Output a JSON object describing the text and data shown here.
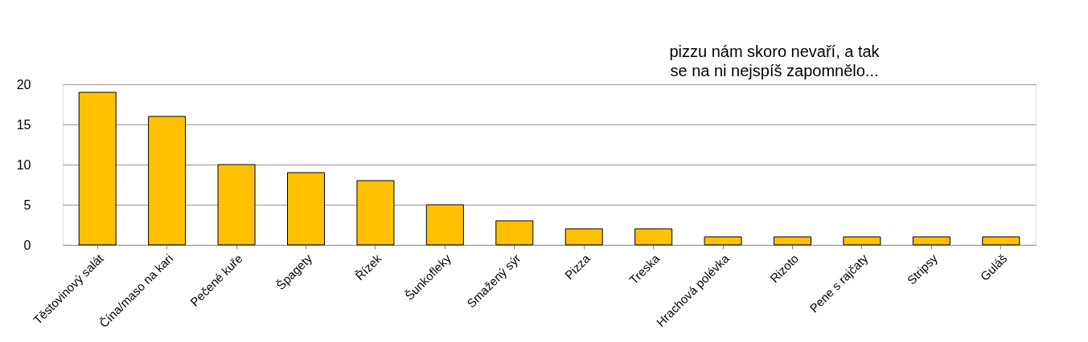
{
  "chart_data": {
    "type": "bar",
    "categories": [
      "Těstovinový salát",
      "Čína/maso na kari",
      "Pečené kuře",
      "Špagety",
      "Řízek",
      "Šunkofleky",
      "Smažený sýr",
      "Pizza",
      "Treska",
      "Hrachová polévka",
      "Rizoto",
      "Pene s rajčaty",
      "Stripsy",
      "Guláš"
    ],
    "values": [
      19,
      16,
      10,
      9,
      8,
      5,
      3,
      2,
      2,
      1,
      1,
      1,
      1,
      1
    ],
    "color": "#ffc000",
    "ylim": [
      0,
      20
    ],
    "yticks": [
      0,
      5,
      10,
      15,
      20
    ],
    "grid": "y",
    "annotations": [
      "pizzu nám skoro nevaří, a tak",
      "se na ni nejspíš zapomnělo..."
    ]
  }
}
